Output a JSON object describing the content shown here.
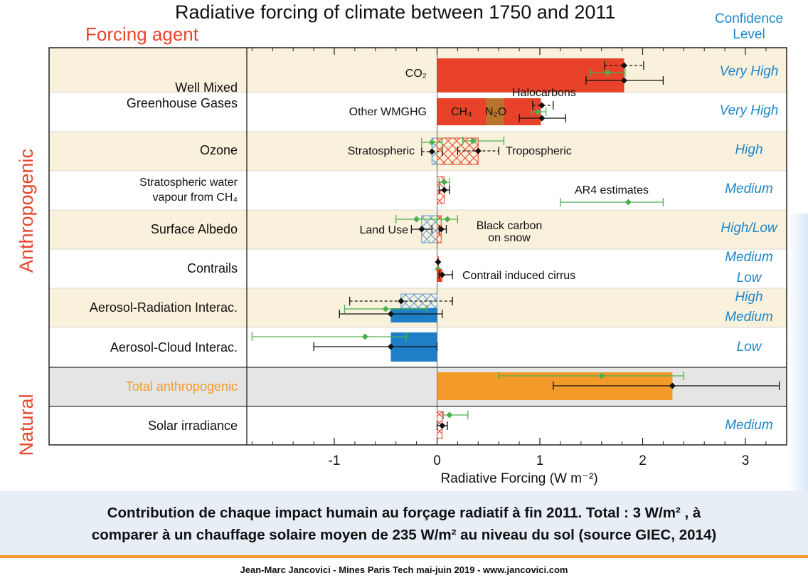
{
  "title": "Radiative forcing of climate between 1750 and 2011",
  "forcing_agent_label": "Forcing agent",
  "confidence_header": [
    "Confidence",
    "Level"
  ],
  "group_labels": {
    "anthropogenic": "Anthropogenic",
    "natural": "Natural"
  },
  "rows": [
    {
      "label": [
        "Well Mixed",
        "Greenhouse Gases"
      ],
      "confidence": [
        "Very High",
        "Very High"
      ]
    },
    {
      "label": [
        "Ozone"
      ],
      "confidence": [
        "High"
      ]
    },
    {
      "label": [
        "Stratospheric water",
        "vapour from CH₄"
      ],
      "confidence": [
        "Medium"
      ]
    },
    {
      "label": [
        "Surface Albedo"
      ],
      "confidence": [
        "High/Low"
      ]
    },
    {
      "label": [
        "Contrails"
      ],
      "confidence": [
        "Medium",
        "Low"
      ]
    },
    {
      "label": [
        "Aerosol-Radiation Interac."
      ],
      "confidence": [
        "High",
        "Medium"
      ]
    },
    {
      "label": [
        "Aerosol-Cloud Interac."
      ],
      "confidence": [
        "Low"
      ]
    },
    {
      "label": [
        "Total anthropogenic"
      ],
      "confidence": [
        ""
      ]
    },
    {
      "label": [
        "Solar irradiance"
      ],
      "confidence": [
        "Medium"
      ]
    }
  ],
  "annotations": {
    "co2": "CO₂",
    "other_wmghg": "Other WMGHG",
    "halocarbons": "Halocarbons",
    "ch4": "CH₄",
    "n2o": "N₂O",
    "stratospheric": "Stratospheric",
    "tropospheric": "Tropospheric",
    "ar4": "AR4 estimates",
    "land_use": "Land Use",
    "black_carbon": [
      "Black carbon",
      "on snow"
    ],
    "contrail_cirrus": "Contrail induced cirrus"
  },
  "chart_data": {
    "type": "bar",
    "orientation": "horizontal",
    "xlabel": "Radiative Forcing (W m⁻²)",
    "xlim": [
      -1.85,
      3.4
    ],
    "xticks": [
      -1,
      0,
      1,
      2,
      3
    ],
    "series": [
      {
        "name": "CO₂",
        "value": 1.82,
        "range": [
          1.63,
          2.01
        ],
        "ar5_ci": [
          1.45,
          2.2
        ],
        "ar4": 1.66,
        "ar4_ci": [
          1.49,
          1.83
        ],
        "color": "#e8432a",
        "style": "solid"
      },
      {
        "name": "CH₄",
        "value": 0.48,
        "color": "#e8432a",
        "style": "solid"
      },
      {
        "name": "N₂O",
        "value": 0.17,
        "color": "#b8742c",
        "style": "solid"
      },
      {
        "name": "Halocarbons",
        "value": 0.36,
        "color": "#e8432a",
        "style": "solid"
      },
      {
        "name": "Other WMGHG",
        "value": 1.02,
        "range": [
          0.93,
          1.13
        ],
        "ar5_ci": [
          0.8,
          1.25
        ],
        "ar4": 0.98,
        "ar4_ci": [
          0.92,
          1.06
        ]
      },
      {
        "name": "Stratospheric",
        "value": -0.05,
        "range": [
          -0.15,
          0.05
        ],
        "ar4": -0.05,
        "ar4_ci": [
          -0.15,
          0.05
        ],
        "style": "hatched-blue"
      },
      {
        "name": "Tropospheric",
        "value": 0.4,
        "range": [
          0.2,
          0.6
        ],
        "ar4": 0.35,
        "ar4_ci": [
          0.25,
          0.65
        ],
        "style": "hatched-red"
      },
      {
        "name": "Stratospheric water vapour from CH₄",
        "value": 0.07,
        "range": [
          0.02,
          0.12
        ],
        "ar4": 0.07,
        "ar4_ci": [
          0.02,
          0.12
        ],
        "style": "hatched-red"
      },
      {
        "name": "Land Use",
        "value": -0.15,
        "range": [
          -0.25,
          -0.05
        ],
        "ar4": -0.2,
        "ar4_ci": [
          -0.4,
          0.0
        ],
        "style": "hatched-blue"
      },
      {
        "name": "Black carbon on snow",
        "value": 0.04,
        "range": [
          0.02,
          0.09
        ],
        "ar4": 0.1,
        "ar4_ci": [
          0.0,
          0.2
        ],
        "style": "hatched-red"
      },
      {
        "name": "Contrails",
        "value": 0.01,
        "range": [
          0.005,
          0.03
        ],
        "ar4": 0.01,
        "ar4_ci": [
          0.003,
          0.03
        ],
        "style": "hatched-red"
      },
      {
        "name": "Contrail induced cirrus",
        "value": 0.05,
        "range": [
          0.02,
          0.15
        ],
        "color": "#e8432a",
        "style": "solid"
      },
      {
        "name": "Aerosol-Radiation Interac. (AR5 range)",
        "value": -0.35,
        "range": [
          -0.85,
          0.15
        ],
        "style": "hatched-blue"
      },
      {
        "name": "Aerosol-Radiation Interac.",
        "value": -0.45,
        "range": [
          -0.95,
          0.05
        ],
        "ar4": -0.5,
        "ar4_ci": [
          -0.9,
          -0.1
        ],
        "color": "#1f7fc6",
        "style": "solid"
      },
      {
        "name": "Aerosol-Cloud Interac.",
        "value": -0.45,
        "range": [
          -1.2,
          0.0
        ],
        "ar4": -0.7,
        "ar4_ci": [
          -1.8,
          -0.3
        ],
        "color": "#1f7fc6",
        "style": "solid"
      },
      {
        "name": "Total anthropogenic",
        "value": 2.29,
        "range": [
          1.13,
          3.33
        ],
        "ar4": 1.6,
        "ar4_ci": [
          0.6,
          2.4
        ],
        "color": "#f39a2b",
        "style": "solid"
      },
      {
        "name": "Solar irradiance",
        "value": 0.05,
        "range": [
          0.0,
          0.1
        ],
        "ar4": 0.12,
        "ar4_ci": [
          0.06,
          0.3
        ],
        "style": "hatched-red"
      }
    ]
  },
  "caption": [
    "Contribution de chaque impact humain au forçage radiatif à fin 2011. Total : 3 W/m² , à",
    "comparer à un chauffage solaire moyen de 235 W/m² au niveau du sol (source GIEC, 2014)"
  ],
  "credit": "Jean-Marc Jancovici - Mines Paris Tech mai-juin 2019 - www.jancovici.com",
  "colors": {
    "accent_red": "#e8452c",
    "confidence_blue": "#1f86c9",
    "ar4_green": "#4caf50",
    "row_band": "#faf1dc",
    "total_band": "#e5e5e5",
    "footer_orange": "#f39a2b"
  }
}
